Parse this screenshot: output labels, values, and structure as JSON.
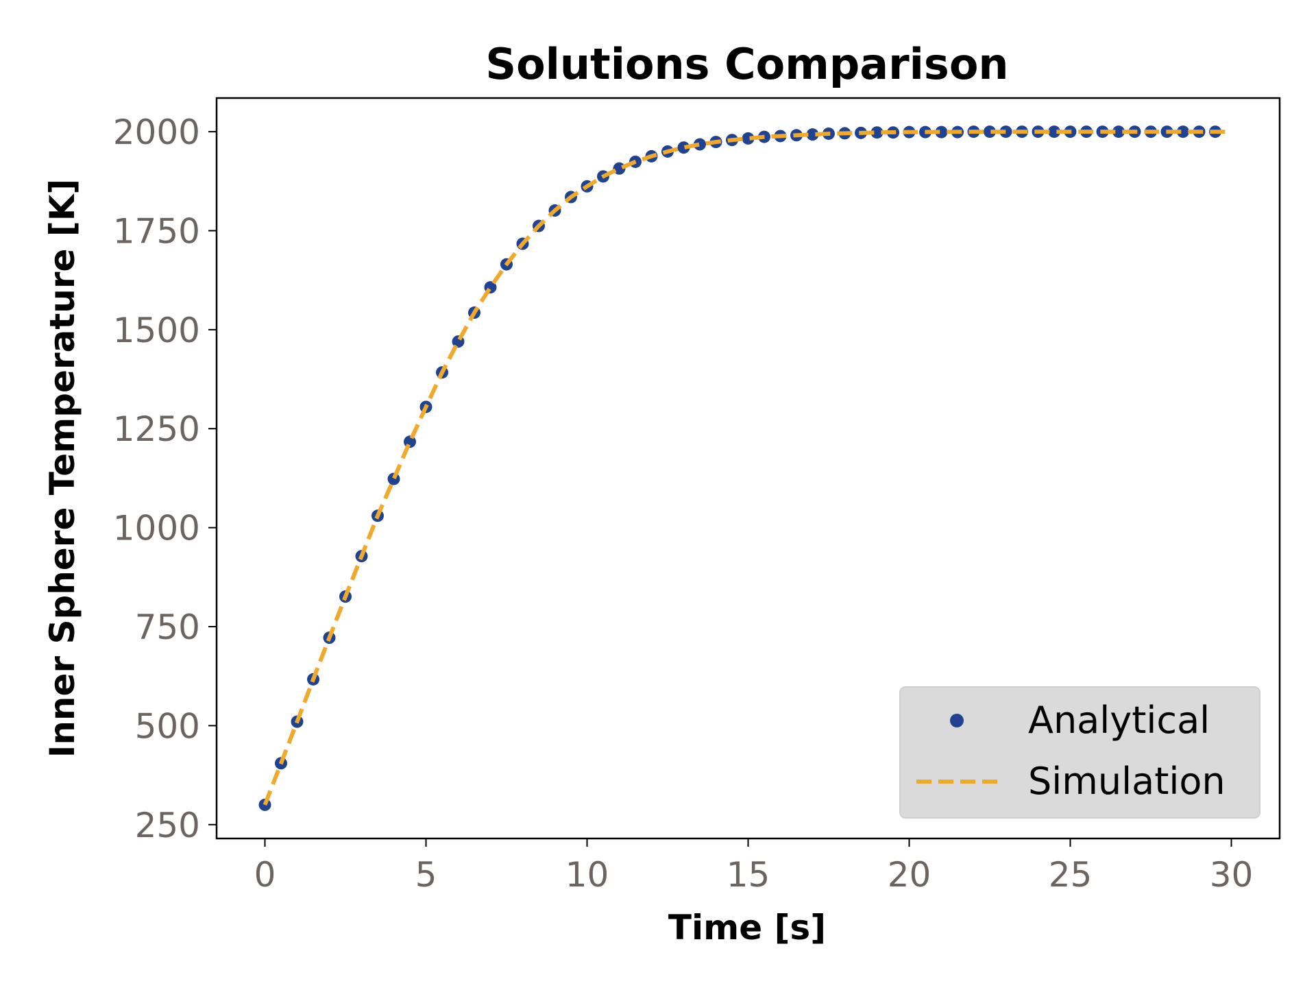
{
  "chart_data": {
    "type": "line",
    "title": "Solutions Comparison",
    "xlabel": "Time [s]",
    "ylabel": "Inner Sphere Temperature [K]",
    "xlim": [
      -1.5,
      31.5
    ],
    "ylim": [
      215,
      2085
    ],
    "xticks": [
      0,
      5,
      10,
      15,
      20,
      25,
      30
    ],
    "yticks": [
      250,
      500,
      750,
      1000,
      1250,
      1500,
      1750,
      2000
    ],
    "grid": false,
    "legend": "bottom-right",
    "colors": {
      "analytical": "#1f4390",
      "simulation": "#f0a92a",
      "tick_label": "#6b6460",
      "legend_bg": "#dadada"
    },
    "series": [
      {
        "name": "Analytical",
        "style": "markers",
        "x": [
          0,
          0.5,
          1,
          1.5,
          2,
          2.5,
          3,
          3.5,
          4,
          4.5,
          5,
          5.5,
          6,
          6.5,
          7,
          7.5,
          8,
          8.5,
          9,
          9.5,
          10,
          10.5,
          11,
          11.5,
          12,
          12.5,
          13,
          13.5,
          14,
          14.5,
          15,
          15.5,
          16,
          16.5,
          17,
          17.5,
          18,
          18.5,
          19,
          19.5,
          20,
          20.5,
          21,
          21.5,
          22,
          22.5,
          23,
          23.5,
          24,
          24.5,
          25,
          25.5,
          26,
          26.5,
          27,
          27.5,
          28,
          28.5,
          29,
          29.5
        ],
        "y": [
          300,
          405,
          510,
          617,
          722,
          826,
          928,
          1030,
          1123,
          1217,
          1305,
          1392,
          1470,
          1543,
          1607,
          1665,
          1717,
          1762,
          1801,
          1835,
          1862,
          1887,
          1907,
          1924,
          1938,
          1950,
          1960,
          1968,
          1974,
          1979,
          1983,
          1987,
          1989,
          1991,
          1993,
          1995,
          1996,
          1997,
          1998,
          1998,
          1999,
          1999,
          1999,
          1999,
          2000,
          2000,
          2000,
          2000,
          2000,
          2000,
          2000,
          2000,
          2000,
          2000,
          2000,
          2000,
          2000,
          2000,
          2000,
          2000
        ]
      },
      {
        "name": "Simulation",
        "style": "dashed",
        "x": [
          0,
          0.5,
          1,
          1.5,
          2,
          2.5,
          3,
          3.5,
          4,
          4.5,
          5,
          5.5,
          6,
          6.5,
          7,
          7.5,
          8,
          8.5,
          9,
          9.5,
          10,
          10.5,
          11,
          11.5,
          12,
          12.5,
          13,
          13.5,
          14,
          14.5,
          15,
          15.5,
          16,
          16.5,
          17,
          17.5,
          18,
          18.5,
          19,
          20,
          22,
          24,
          26,
          28,
          30
        ],
        "y": [
          300,
          405,
          510,
          617,
          722,
          826,
          928,
          1030,
          1123,
          1217,
          1305,
          1392,
          1470,
          1543,
          1607,
          1665,
          1717,
          1762,
          1801,
          1835,
          1862,
          1887,
          1907,
          1924,
          1938,
          1950,
          1960,
          1968,
          1974,
          1979,
          1983,
          1987,
          1989,
          1991,
          1993,
          1995,
          1996,
          1997,
          1998,
          1999,
          2000,
          2000,
          2000,
          2000,
          2000
        ]
      }
    ]
  }
}
